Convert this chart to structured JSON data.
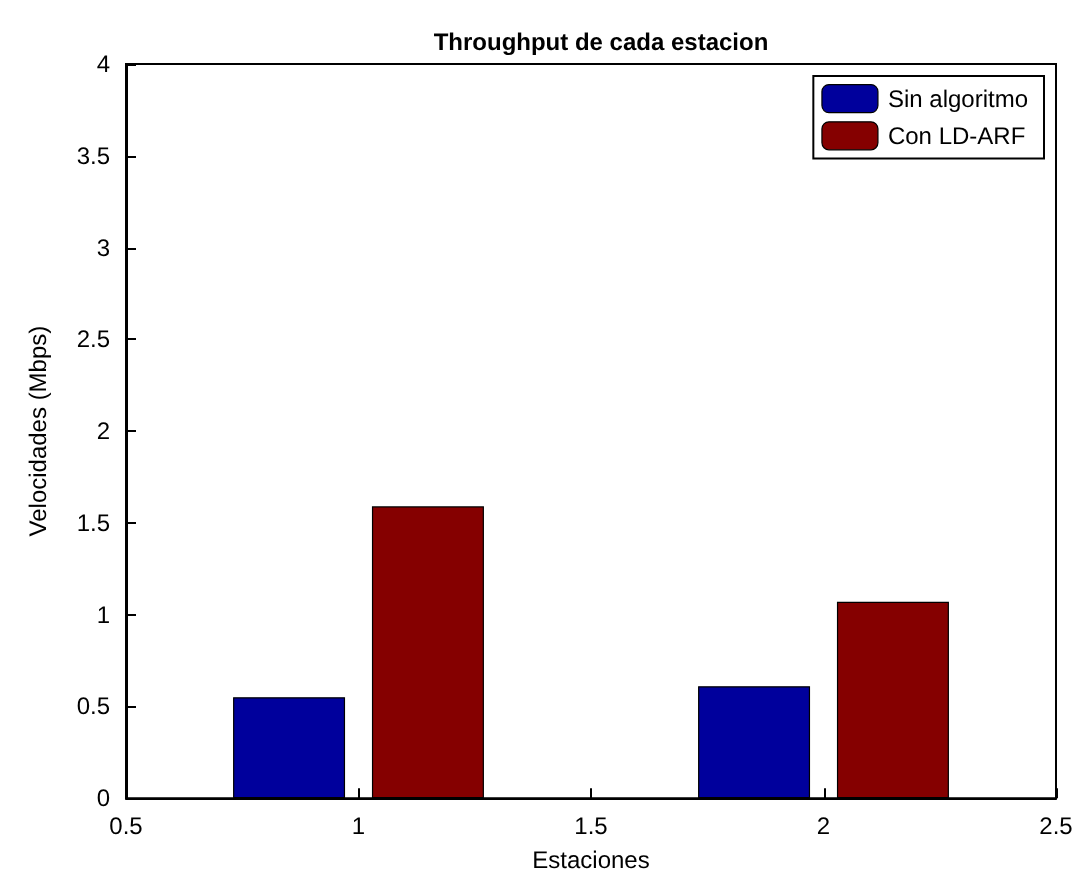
{
  "chart_data": {
    "type": "bar",
    "title": "Throughput de cada estacion",
    "xlabel": "Estaciones",
    "ylabel": "Velocidades (Mbps)",
    "x": [
      1,
      2
    ],
    "series": [
      {
        "name": "Sin algoritmo",
        "color": "#00009c",
        "values": [
          0.55,
          0.61
        ]
      },
      {
        "name": "Con LD-ARF",
        "color": "#850000",
        "values": [
          1.59,
          1.07
        ]
      }
    ],
    "xlim": [
      0.5,
      2.5
    ],
    "xticks": [
      0.5,
      1,
      1.5,
      2,
      2.5
    ],
    "ylim": [
      0,
      4
    ],
    "yticks": [
      0,
      0.5,
      1,
      1.5,
      2,
      2.5,
      3,
      3.5,
      4
    ],
    "grid": false,
    "legend": "top right"
  }
}
